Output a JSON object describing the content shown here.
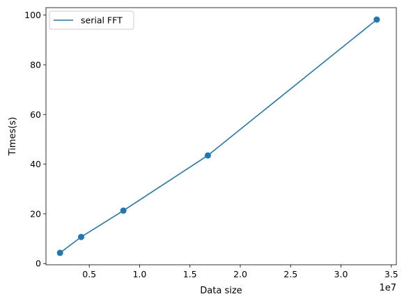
{
  "chart_data": {
    "type": "line",
    "title": "",
    "xlabel": "Data size",
    "ylabel": "Times(s)",
    "x_scale_label": "1e7",
    "xlim": [
      700000,
      35500000
    ],
    "ylim": [
      -0.5,
      103
    ],
    "x_ticks": [
      5000000,
      10000000,
      15000000,
      20000000,
      25000000,
      30000000,
      35000000
    ],
    "x_tick_labels": [
      "0.5",
      "1.0",
      "1.5",
      "2.0",
      "2.5",
      "3.0",
      "3.5"
    ],
    "y_ticks": [
      0,
      20,
      40,
      60,
      80,
      100
    ],
    "y_tick_labels": [
      "0",
      "20",
      "40",
      "60",
      "80",
      "100"
    ],
    "grid": false,
    "legend_position": "top-left",
    "series": [
      {
        "name": "serial FFT",
        "color": "#1f77b4",
        "marker": "circle",
        "x": [
          2097152,
          4194304,
          8388608,
          16777216,
          33554432
        ],
        "y": [
          4.3,
          10.7,
          21.3,
          43.5,
          98.2
        ]
      }
    ]
  }
}
